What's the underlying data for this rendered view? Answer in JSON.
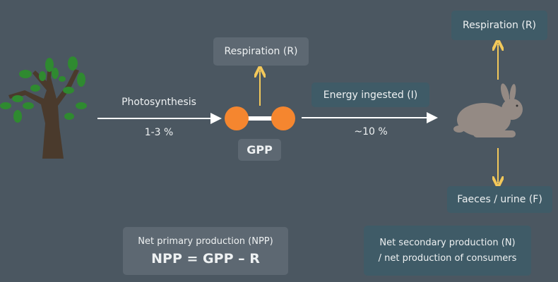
{
  "producer": {
    "icon": "tree-icon",
    "respiration": "Respiration (R)",
    "gpp": "GPP"
  },
  "flow1": {
    "label": "Photosynthesis",
    "efficiency": "1-3 %"
  },
  "flow2": {
    "label": "Energy ingested (I)",
    "efficiency": "~10 %"
  },
  "consumer": {
    "icon": "rabbit-icon",
    "respiration": "Respiration (R)",
    "faeces": "Faeces / urine (F)"
  },
  "npp": {
    "title": "Net primary production (NPP)",
    "formula": "NPP = GPP – R"
  },
  "nsp": {
    "line1": "Net secondary production (N)",
    "line2": "/ net production of consumers"
  },
  "colors": {
    "background": "#4b5761",
    "orange": "#f5862f",
    "yellow": "#f3c85a",
    "tree_leaf": "#2e8b2e",
    "tree_trunk": "#4a3a2c",
    "rabbit": "#948a84"
  }
}
